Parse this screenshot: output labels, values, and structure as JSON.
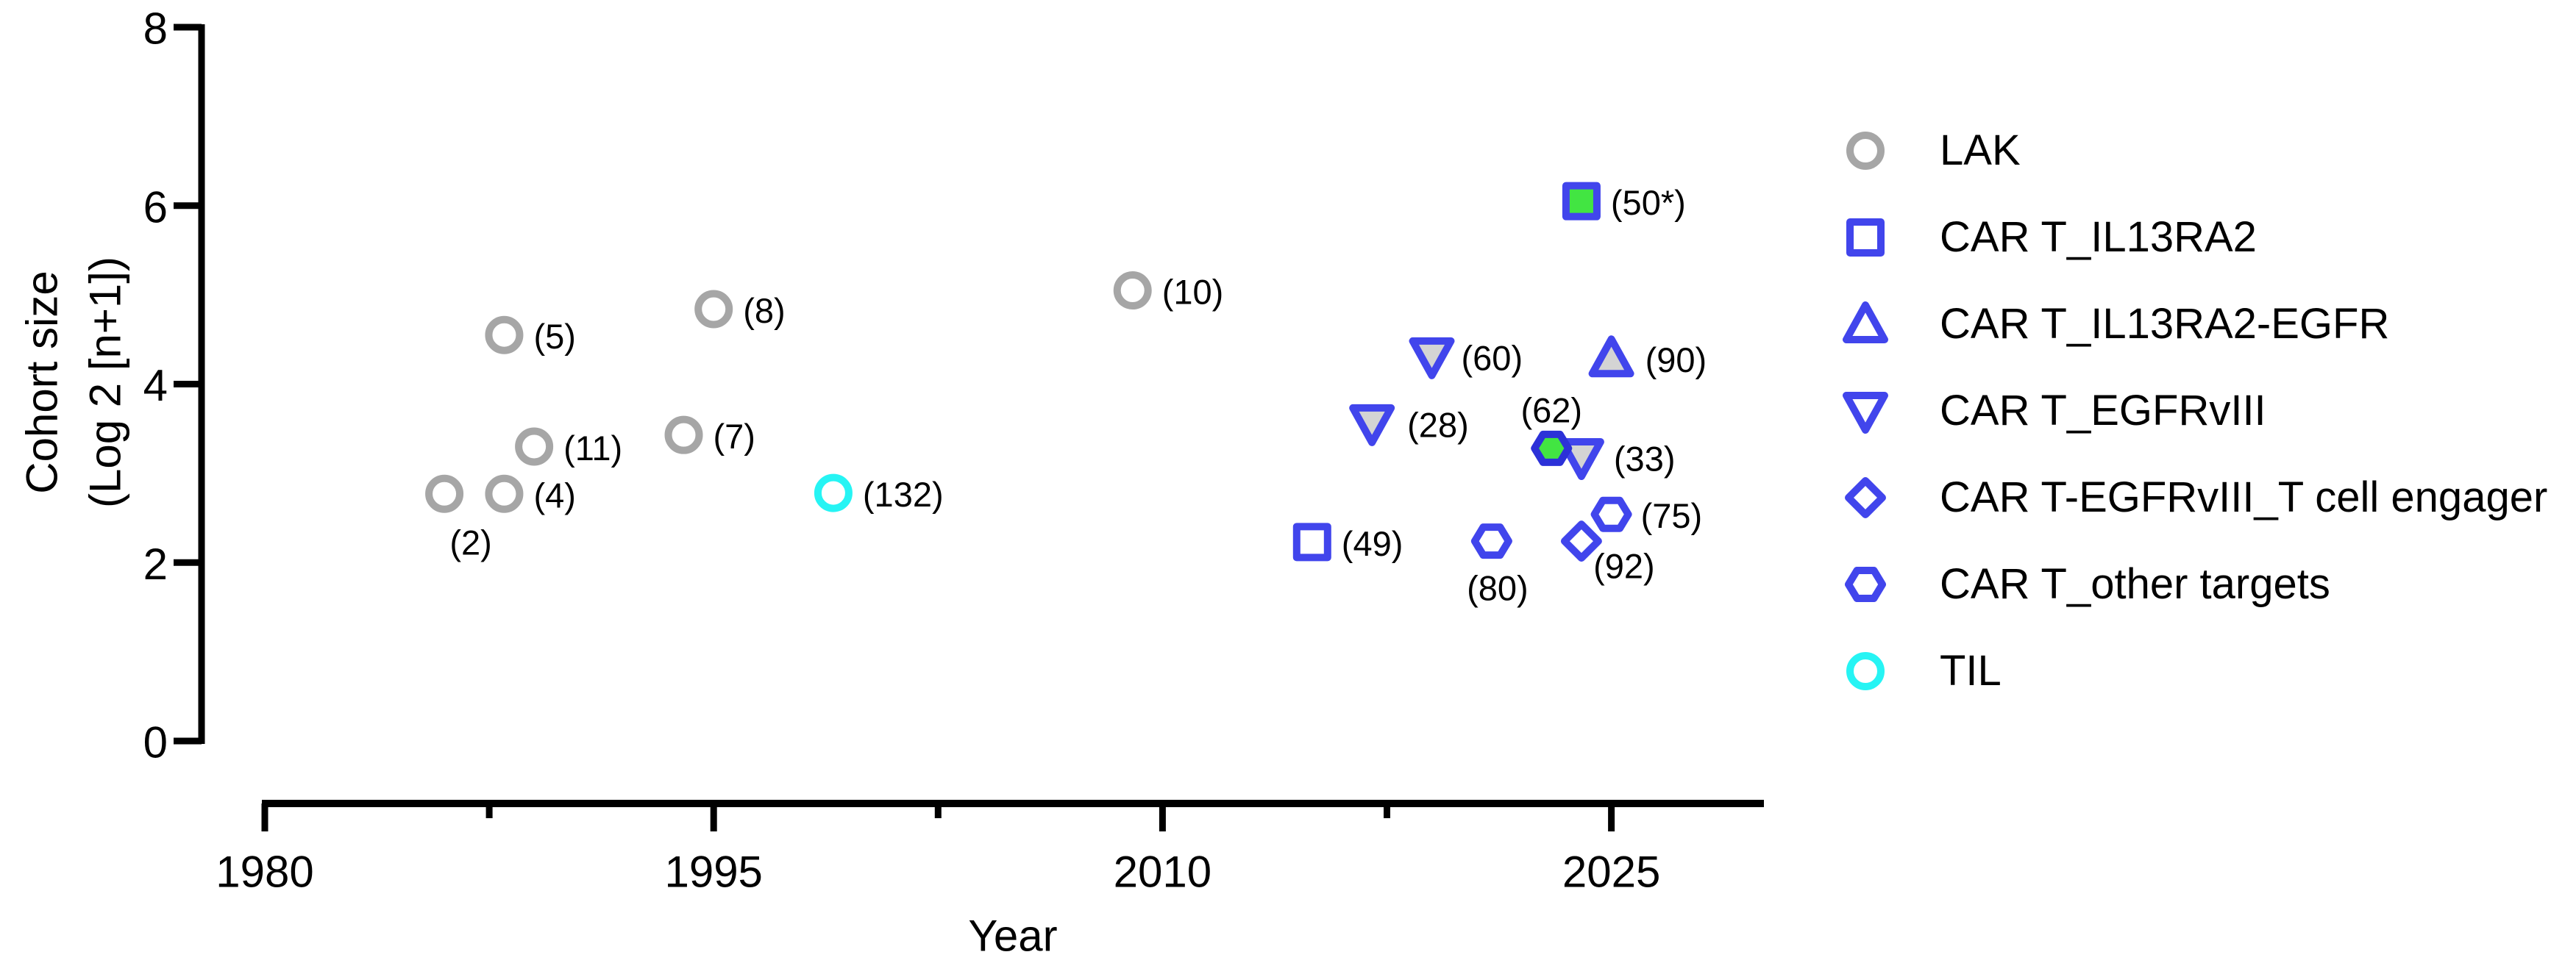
{
  "figure": {
    "background": "#ffffff"
  },
  "colors": {
    "axis": "#000000",
    "text": "#000000",
    "blue_marker": "#4145ec",
    "dark_blue_marker": "#2c31d8",
    "gray_marker": "#a6a6a6",
    "cyan_marker": "#26f4f4",
    "green_fill": "#42e542",
    "triangle_gray_fill": "#d4d4d4"
  },
  "chart_data": {
    "type": "scatter",
    "title": "",
    "xlabel": "Year",
    "ylabel_line1": "Cohort size",
    "ylabel_line2": "(Log 2 [n+1])",
    "xlim": [
      1980,
      2030
    ],
    "ylim": [
      0,
      8
    ],
    "xticks": [
      1980,
      1995,
      2010,
      2025
    ],
    "x_minor_ticks": [
      1987.5,
      2002.5,
      2017.5
    ],
    "yticks": [
      0,
      2,
      4,
      6,
      8
    ],
    "grid": "off",
    "legend_position": "right",
    "series": [
      {
        "name": "LAK",
        "key": "lak",
        "marker": "circle",
        "stroke": "#a6a6a6",
        "plot_fill": "#ffffff",
        "legend_fill": "#ffffff",
        "points": [
          {
            "x": 1986,
            "y": 2.77,
            "label": "(2)",
            "label_anchor": "middle",
            "label_dx": 36,
            "label_dy": 66
          },
          {
            "x": 1988,
            "y": 2.77,
            "label": "(4)"
          },
          {
            "x": 1988,
            "y": 4.55,
            "label": "(5)"
          },
          {
            "x": 1989,
            "y": 3.3,
            "label": "(11)"
          },
          {
            "x": 1994,
            "y": 3.43,
            "label": "(7)"
          },
          {
            "x": 1995,
            "y": 4.84,
            "label": "(8)"
          },
          {
            "x": 2009,
            "y": 5.05,
            "label": "(10)"
          }
        ]
      },
      {
        "name": "CAR T_IL13RA2",
        "key": "car_t_il13ra2",
        "marker": "square",
        "stroke": "#4145ec",
        "plot_fill": "#ffffff",
        "legend_fill": "#ffffff",
        "points": [
          {
            "x": 2015,
            "y": 2.23,
            "label": "(49)"
          },
          {
            "x": 2024,
            "y": 6.05,
            "label": "(50*)",
            "fill": "#42e542"
          }
        ]
      },
      {
        "name": "CAR T_IL13RA2-EGFR",
        "key": "car_t_il13ra2_egfr",
        "marker": "triangle-up",
        "stroke": "#4145ec",
        "plot_fill": "#d4d4d4",
        "legend_fill": "#ffffff",
        "points": [
          {
            "x": 2025,
            "y": 4.29,
            "label": "(90)",
            "label_dx": 46
          }
        ]
      },
      {
        "name": "CAR T_EGFRvIII",
        "key": "car_t_egfrviii",
        "marker": "triangle-down",
        "stroke": "#4145ec",
        "plot_fill": "#d4d4d4",
        "legend_fill": "#ffffff",
        "points": [
          {
            "x": 2017,
            "y": 3.56,
            "label": "(28)",
            "label_dx": 48
          },
          {
            "x": 2019,
            "y": 4.31,
            "label": "(60)"
          },
          {
            "x": 2024,
            "y": 3.18,
            "label": "(33)",
            "label_dx": 44
          }
        ]
      },
      {
        "name": "CAR T-EGFRvIII_T cell engager",
        "key": "car_t_egfrviii_t_cell_engager",
        "marker": "diamond",
        "stroke": "#4145ec",
        "plot_fill": "#ffffff",
        "legend_fill": "#ffffff",
        "points": [
          {
            "x": 2024,
            "y": 2.24,
            "label": "(92)",
            "label_anchor": "middle",
            "label_dx": 58,
            "label_dy": 34
          }
        ]
      },
      {
        "name": "CAR T_other targets",
        "key": "car_t_other_targets",
        "marker": "hexagon",
        "stroke": "#4145ec",
        "plot_fill": "#ffffff",
        "legend_fill": "#ffffff",
        "points": [
          {
            "x": 2021,
            "y": 2.24,
            "label": "(80)",
            "label_anchor": "middle",
            "label_dx": 8,
            "label_dy": 64
          },
          {
            "x": 2023,
            "y": 3.28,
            "label": "(62)",
            "label_anchor": "middle",
            "label_dx": 0,
            "label_dy": -52,
            "fill": "#42e542",
            "stroke": "#2c31d8"
          },
          {
            "x": 2025,
            "y": 2.54,
            "label": "(75)"
          }
        ]
      },
      {
        "name": "TIL",
        "key": "til",
        "marker": "circle",
        "stroke": "#26f4f4",
        "plot_fill": "#ffffff",
        "legend_fill": "#ffffff",
        "points": [
          {
            "x": 1999,
            "y": 2.78,
            "label": "(132)"
          }
        ]
      }
    ]
  }
}
